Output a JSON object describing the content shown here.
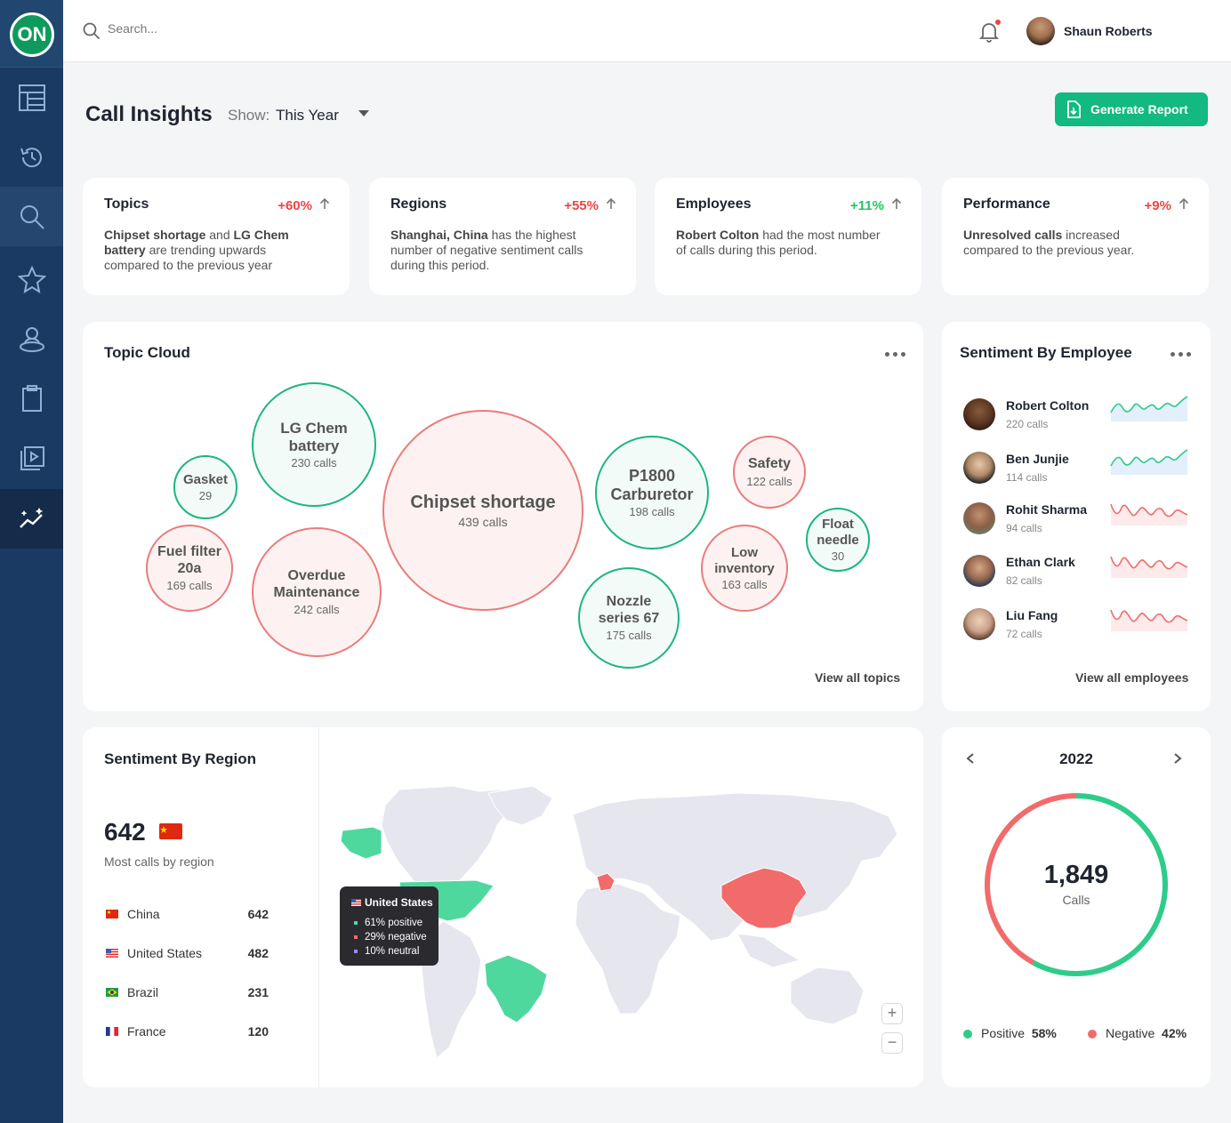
{
  "app": {
    "logo_text": "ON"
  },
  "sidebar": {
    "items": [
      "layout-icon",
      "history-icon",
      "search-icon",
      "star-icon",
      "profile-icon",
      "clipboard-icon",
      "media-icon",
      "insights-icon"
    ]
  },
  "topbar": {
    "search_placeholder": "Search...",
    "user_name": "Shaun Roberts"
  },
  "header": {
    "title": "Call Insights",
    "show_label": "Show:",
    "show_value": "This Year",
    "generate_label": "Generate Report"
  },
  "kpis": [
    {
      "title": "Topics",
      "change": "+60%",
      "color": "#ef4444",
      "parts": [
        [
          "b",
          "Chipset shortage"
        ],
        [
          "t",
          " and "
        ],
        [
          "b",
          "LG Chem battery"
        ],
        [
          "t",
          " are trending upwards compared to the previous year"
        ]
      ]
    },
    {
      "title": "Regions",
      "change": "+55%",
      "color": "#ef4444",
      "parts": [
        [
          "b",
          "Shanghai, China"
        ],
        [
          "t",
          " has the highest number of negative sentiment calls during this period."
        ]
      ]
    },
    {
      "title": "Employees",
      "change": "+11%",
      "color": "#22c55e",
      "parts": [
        [
          "b",
          "Robert Colton"
        ],
        [
          "t",
          " had the most number of calls during this period."
        ]
      ]
    },
    {
      "title": "Performance",
      "change": "+9%",
      "color": "#ef4444",
      "parts": [
        [
          "b",
          "Unresolved calls"
        ],
        [
          "t",
          " increased compared to the previous year."
        ]
      ]
    }
  ],
  "topic_cloud": {
    "title": "Topic Cloud",
    "view_all": "View all topics",
    "topics": [
      {
        "name": "Gasket",
        "calls": "29",
        "sentiment": "g"
      },
      {
        "name": "LG Chem battery",
        "calls": "230 calls",
        "sentiment": "g"
      },
      {
        "name": "Chipset shortage",
        "calls": "439 calls",
        "sentiment": "r"
      },
      {
        "name": "P1800 Carburetor",
        "calls": "198 calls",
        "sentiment": "g"
      },
      {
        "name": "Safety",
        "calls": "122 calls",
        "sentiment": "r"
      },
      {
        "name": "Float needle",
        "calls": "30",
        "sentiment": "g"
      },
      {
        "name": "Fuel filter 20a",
        "calls": "169 calls",
        "sentiment": "r"
      },
      {
        "name": "Overdue Maintenance",
        "calls": "242 calls",
        "sentiment": "r"
      },
      {
        "name": "Nozzle series 67",
        "calls": "175 calls",
        "sentiment": "g"
      },
      {
        "name": "Low inventory",
        "calls": "163 calls",
        "sentiment": "r"
      }
    ]
  },
  "employees": {
    "title": "Sentiment By Employee",
    "view_all": "View all employees",
    "list": [
      {
        "name": "Robert Colton",
        "calls": "220 calls",
        "trend": "positive"
      },
      {
        "name": "Ben Junjie",
        "calls": "114 calls",
        "trend": "positive"
      },
      {
        "name": "Rohit Sharma",
        "calls": "94 calls",
        "trend": "negative"
      },
      {
        "name": "Ethan Clark",
        "calls": "82 calls",
        "trend": "negative"
      },
      {
        "name": "Liu Fang",
        "calls": "72 calls",
        "trend": "negative"
      }
    ]
  },
  "region": {
    "title": "Sentiment By Region",
    "top_value": "642",
    "top_label": "Most calls by region",
    "rows": [
      {
        "name": "China",
        "value": "642"
      },
      {
        "name": "United States",
        "value": "482"
      },
      {
        "name": "Brazil",
        "value": "231"
      },
      {
        "name": "France",
        "value": "120"
      }
    ],
    "tooltip": {
      "country": "United States",
      "positive": "61% positive",
      "negative": "29% negative",
      "neutral": "10% neutral"
    }
  },
  "donut": {
    "year": "2022",
    "total": "1,849",
    "unit": "Calls",
    "positive_label": "Positive",
    "positive_value": "58%",
    "negative_label": "Negative",
    "negative_value": "42%",
    "chart_data": {
      "type": "pie",
      "categories": [
        "Positive",
        "Negative"
      ],
      "values": [
        58,
        42
      ]
    }
  },
  "colors": {
    "positive": "#2ecc8a",
    "negative": "#f26b6b",
    "accent": "#12b981",
    "sidebar": "#1b3a63"
  }
}
